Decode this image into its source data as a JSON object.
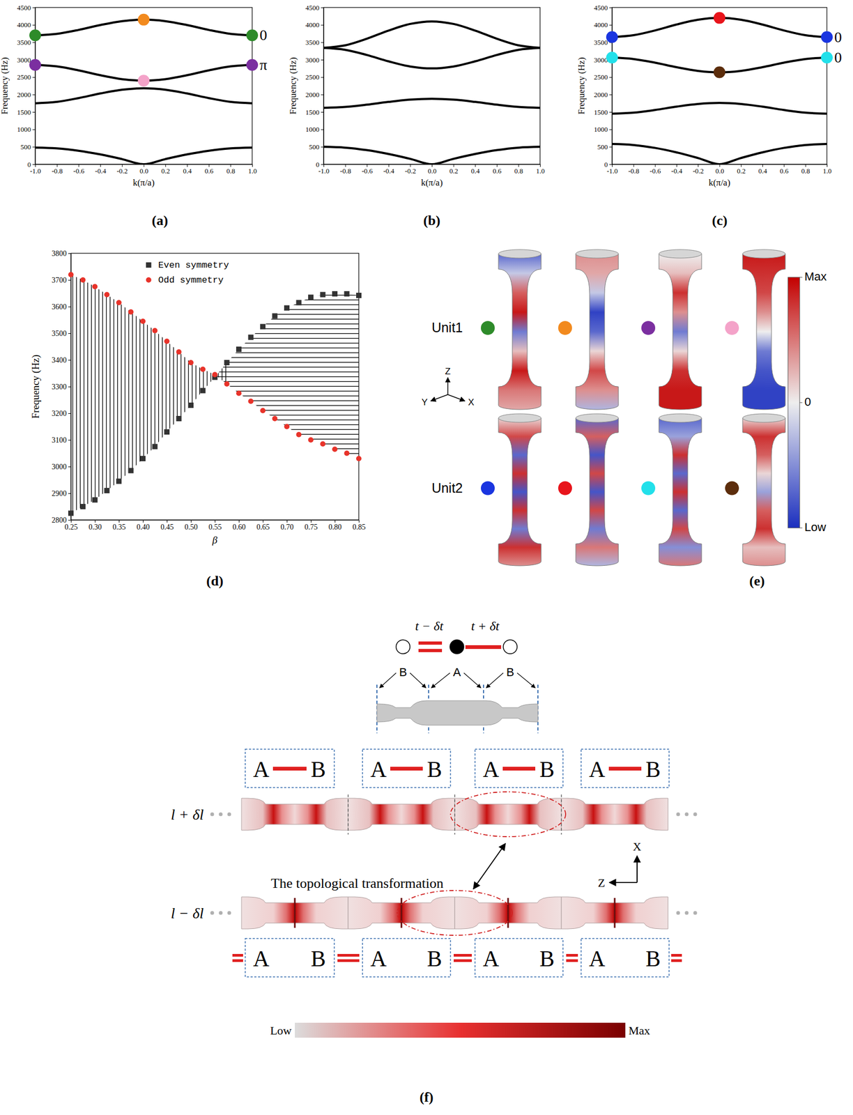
{
  "panel_labels": [
    "(a)",
    "(b)",
    "(c)",
    "(d)",
    "(e)",
    "(f)"
  ],
  "chart_data": [
    {
      "type": "line",
      "x_label": "k(π/a)",
      "y_label": "Frequency (Hz)",
      "xlim": [
        -1,
        1
      ],
      "xticks": [
        {
          "value": -1,
          "label": "-1.0"
        },
        -0.8,
        -0.6,
        -0.4,
        -0.2,
        {
          "value": 0,
          "label": "0.0"
        },
        0.2,
        0.4,
        0.6,
        0.8,
        {
          "value": 1,
          "label": "1.0"
        }
      ],
      "ylim": [
        0,
        4500
      ],
      "yticks": [
        0,
        500,
        1000,
        1500,
        2000,
        2500,
        3000,
        3500,
        4000,
        4500
      ],
      "x": [
        -1,
        -0.8,
        -0.6,
        -0.4,
        -0.2,
        0,
        0.2,
        0.4,
        0.6,
        0.8,
        1
      ],
      "series": [
        {
          "color": "#000000",
          "values": [
            480,
            456,
            388,
            282,
            148,
            0,
            148,
            282,
            388,
            456,
            480
          ]
        },
        {
          "color": "#000000",
          "values": [
            1750,
            1791,
            1899,
            2031,
            2139,
            2180,
            2139,
            2031,
            1899,
            1791,
            1750
          ]
        },
        {
          "color": "#000000",
          "values": [
            2850,
            2807,
            2695,
            2555,
            2443,
            2400,
            2443,
            2555,
            2695,
            2807,
            2850
          ]
        },
        {
          "color": "#000000",
          "values": [
            3700,
            3743,
            3855,
            3995,
            4107,
            4150,
            4107,
            3995,
            3855,
            3743,
            3700
          ]
        },
        {
          "type": "scatter",
          "marker": "circle",
          "color": "#2e8b2a",
          "x": [
            -1,
            1
          ],
          "values": [
            3700,
            3700
          ]
        },
        {
          "type": "scatter",
          "marker": "circle",
          "color": "#f28a1e",
          "x": [
            0
          ],
          "values": [
            4150
          ]
        },
        {
          "type": "scatter",
          "marker": "circle",
          "color": "#7b2fa0",
          "x": [
            -1,
            1
          ],
          "values": [
            2850,
            2850
          ]
        },
        {
          "type": "scatter",
          "marker": "circle",
          "color": "#f4a3c9",
          "x": [
            0
          ],
          "values": [
            2400
          ]
        }
      ],
      "annotations": [
        {
          "text": "0",
          "x": 1,
          "y": 3700
        },
        {
          "text": "π",
          "x": 1,
          "y": 2850
        }
      ]
    },
    {
      "type": "line",
      "x_label": "k(π/a)",
      "y_label": "Frequency (Hz)",
      "xlim": [
        -1,
        1
      ],
      "xticks": [
        {
          "value": -1,
          "label": "-1.0"
        },
        -0.8,
        -0.6,
        -0.4,
        -0.2,
        {
          "value": 0,
          "label": "0.0"
        },
        0.2,
        0.4,
        0.6,
        0.8,
        {
          "value": 1,
          "label": "1.0"
        }
      ],
      "ylim": [
        0,
        4500
      ],
      "yticks": [
        0,
        500,
        1000,
        1500,
        2000,
        2500,
        3000,
        3500,
        4000,
        4500
      ],
      "x": [
        -1,
        -0.8,
        -0.6,
        -0.4,
        -0.2,
        0,
        0.2,
        0.4,
        0.6,
        0.8,
        1
      ],
      "series": [
        {
          "color": "#000000",
          "values": [
            500,
            476,
            405,
            294,
            155,
            0,
            155,
            294,
            405,
            476,
            500
          ]
        },
        {
          "color": "#000000",
          "values": [
            1620,
            1645,
            1710,
            1790,
            1855,
            1880,
            1855,
            1790,
            1710,
            1645,
            1620
          ]
        },
        {
          "color": "#000000",
          "values": [
            3340,
            3284,
            3136,
            2954,
            2806,
            2750,
            2806,
            2954,
            3136,
            3284,
            3340
          ]
        },
        {
          "color": "#000000",
          "values": [
            3340,
            3413,
            3603,
            3837,
            4027,
            4100,
            4027,
            3837,
            3603,
            3413,
            3340
          ]
        }
      ]
    },
    {
      "type": "line",
      "x_label": "k(π/a)",
      "y_label": "Frequency (Hz)",
      "xlim": [
        -1,
        1
      ],
      "xticks": [
        {
          "value": -1,
          "label": "-1.0"
        },
        -0.8,
        -0.6,
        -0.4,
        -0.2,
        {
          "value": 0,
          "label": "0.0"
        },
        0.2,
        0.4,
        0.6,
        0.8,
        {
          "value": 1,
          "label": "1.0"
        }
      ],
      "ylim": [
        0,
        4500
      ],
      "yticks": [
        0,
        500,
        1000,
        1500,
        2000,
        2500,
        3000,
        3500,
        4000,
        4500
      ],
      "x": [
        -1,
        -0.8,
        -0.6,
        -0.4,
        -0.2,
        0,
        0.2,
        0.4,
        0.6,
        0.8,
        1
      ],
      "series": [
        {
          "color": "#000000",
          "values": [
            580,
            552,
            469,
            341,
            179,
            0,
            179,
            341,
            469,
            552,
            580
          ]
        },
        {
          "color": "#000000",
          "values": [
            1450,
            1480,
            1557,
            1653,
            1730,
            1760,
            1730,
            1653,
            1557,
            1480,
            1450
          ]
        },
        {
          "color": "#000000",
          "values": [
            3060,
            3020,
            2915,
            2785,
            2680,
            2640,
            2680,
            2785,
            2915,
            3020,
            3060
          ]
        },
        {
          "color": "#000000",
          "values": [
            3650,
            3703,
            3840,
            4010,
            4147,
            4200,
            4147,
            4010,
            3840,
            3703,
            3650
          ]
        },
        {
          "type": "scatter",
          "marker": "circle",
          "color": "#1a35e0",
          "x": [
            -1,
            1
          ],
          "values": [
            3650,
            3650
          ]
        },
        {
          "type": "scatter",
          "marker": "circle",
          "color": "#e8141b",
          "x": [
            0
          ],
          "values": [
            4200
          ]
        },
        {
          "type": "scatter",
          "marker": "circle",
          "color": "#22e0ea",
          "x": [
            -1,
            1
          ],
          "values": [
            3060,
            3060
          ]
        },
        {
          "type": "scatter",
          "marker": "circle",
          "color": "#5c2d0c",
          "x": [
            0
          ],
          "values": [
            2640
          ]
        }
      ],
      "annotations": [
        {
          "text": "0",
          "x": 1,
          "y": 3650
        },
        {
          "text": "0",
          "x": 1,
          "y": 3060
        }
      ]
    },
    {
      "type": "scatter",
      "x_label": "β",
      "y_label": "Frequency (Hz)",
      "xlim": [
        0.25,
        0.85
      ],
      "xticks": [
        0.25,
        {
          "value": 0.3,
          "label": "0.30"
        },
        0.35,
        {
          "value": 0.4,
          "label": "0.40"
        },
        0.45,
        {
          "value": 0.5,
          "label": "0.50"
        },
        0.55,
        {
          "value": 0.6,
          "label": "0.60"
        },
        0.65,
        {
          "value": 0.7,
          "label": "0.70"
        },
        0.75,
        {
          "value": 0.8,
          "label": "0.80"
        },
        0.85
      ],
      "ylim": [
        2800,
        3800
      ],
      "yticks": [
        2800,
        2900,
        3000,
        3100,
        3200,
        3300,
        3400,
        3500,
        3600,
        3700,
        3800
      ],
      "legend": "top",
      "x": [
        0.25,
        0.275,
        0.3,
        0.325,
        0.35,
        0.375,
        0.4,
        0.425,
        0.45,
        0.475,
        0.5,
        0.525,
        0.55,
        0.575,
        0.6,
        0.625,
        0.65,
        0.675,
        0.7,
        0.725,
        0.75,
        0.775,
        0.8,
        0.825,
        0.85
      ],
      "series": [
        {
          "name": "Even symmetry",
          "marker": "square",
          "color": "#333333",
          "values": [
            2825,
            2850,
            2875,
            2910,
            2945,
            2985,
            3030,
            3075,
            3130,
            3180,
            3230,
            3285,
            3335,
            3390,
            3440,
            3485,
            3525,
            3565,
            3595,
            3615,
            3635,
            3645,
            3648,
            3648,
            3642
          ]
        },
        {
          "name": "Odd symmetry",
          "marker": "circle",
          "color": "#e8332a",
          "values": [
            3720,
            3700,
            3675,
            3645,
            3615,
            3580,
            3545,
            3510,
            3470,
            3430,
            3390,
            3365,
            3345,
            3310,
            3275,
            3245,
            3210,
            3180,
            3150,
            3120,
            3100,
            3085,
            3065,
            3050,
            3030
          ]
        }
      ]
    }
  ],
  "mode_shapes": {
    "rows": [
      {
        "label": "Unit1",
        "modes": [
          {
            "color": "#2e8b2a",
            "field": [
              -0.7,
              -0.2,
              0.6,
              0.9,
              -0.6,
              0.2,
              0.9,
              0.5,
              0.3
            ]
          },
          {
            "color": "#f28a1e",
            "field": [
              0.4,
              0.3,
              -0.2,
              -0.9,
              -0.7,
              0.1,
              0.7,
              0.4,
              -0.3
            ]
          },
          {
            "color": "#7b2fa0",
            "field": [
              0.0,
              0.2,
              0.8,
              0.4,
              -0.6,
              0.1,
              0.8,
              0.9,
              0.9
            ]
          },
          {
            "color": "#f4a3c9",
            "field": [
              0.9,
              0.8,
              0.7,
              0.4,
              0.0,
              -0.6,
              -0.8,
              -0.9,
              -0.9
            ]
          }
        ]
      },
      {
        "label": "Unit2",
        "modes": [
          {
            "color": "#1a35e0",
            "field": [
              0.1,
              0.7,
              -0.7,
              0.8,
              -0.8,
              0.8,
              -0.6,
              0.8,
              0.4
            ]
          },
          {
            "color": "#e8141b",
            "field": [
              -0.7,
              0.6,
              -0.8,
              0.7,
              -0.8,
              0.7,
              -0.6,
              0.5,
              -0.3
            ]
          },
          {
            "color": "#22e0ea",
            "field": [
              -0.7,
              -0.4,
              0.8,
              -0.7,
              0.8,
              -0.7,
              0.7,
              -0.5,
              0.5
            ]
          },
          {
            "color": "#5c2d0c",
            "field": [
              0.1,
              0.8,
              0.6,
              0.1,
              -0.4,
              0.6,
              0.8,
              0.2,
              0.4
            ]
          }
        ]
      }
    ],
    "colorbar": {
      "range": [
        -1,
        1
      ],
      "ticks": [
        {
          "value": 1,
          "label": "Max"
        },
        0,
        {
          "value": -1,
          "label": "Low"
        }
      ]
    },
    "axes": [
      "Z",
      "Y",
      "X"
    ]
  },
  "diagram": {
    "hoppings": [
      "t − δt",
      "t + δt"
    ],
    "sites": [
      "B",
      "A",
      "B"
    ],
    "top_cells": [
      [
        "A",
        "B"
      ],
      [
        "A",
        "B"
      ],
      [
        "A",
        "B"
      ],
      [
        "A",
        "B"
      ]
    ],
    "top_beam": "l + δl",
    "transformation": "The topological transformation",
    "bottom_beam": "l − δl",
    "bottom_cells": [
      [
        "A",
        "B"
      ],
      [
        "A",
        "B"
      ],
      [
        "A",
        "B"
      ],
      [
        "A",
        "B"
      ]
    ],
    "axes": [
      "X",
      "Z"
    ],
    "colorbar": [
      "Low",
      "Max"
    ]
  }
}
